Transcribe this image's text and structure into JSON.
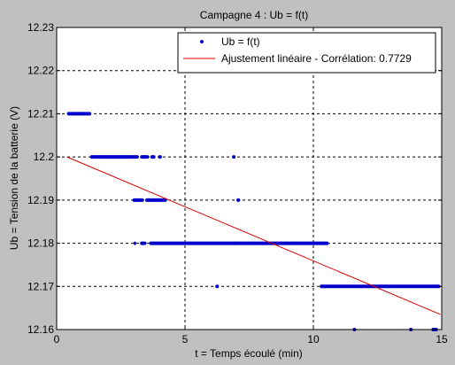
{
  "chart_data": {
    "type": "scatter",
    "title": "Campagne 4 : Ub = f(t)",
    "xlabel": "t = Temps écoulé (min)",
    "ylabel": "Ub = Tension de la batterie (V)",
    "xlim": [
      0,
      15
    ],
    "ylim": [
      12.16,
      12.23
    ],
    "xticks": [
      0,
      5,
      10,
      15
    ],
    "xtick_labels": [
      "0",
      "5",
      "10",
      "15"
    ],
    "yticks": [
      12.16,
      12.17,
      12.18,
      12.19,
      12.2,
      12.21,
      12.22,
      12.23
    ],
    "ytick_labels": [
      "12.16",
      "12.17",
      "12.18",
      "12.19",
      "12.2",
      "12.21",
      "12.22",
      "12.23"
    ],
    "grid": true,
    "legend_position": "top-right",
    "colors": {
      "scatter": "#0000cc",
      "fit": "#dd0000",
      "axes_bg": "#ffffff",
      "figure_bg": "#c0c0c0"
    },
    "series": [
      {
        "name": "Ub = f(t)",
        "kind": "scatter",
        "segments": [
          {
            "y": 12.21,
            "x_start": 0.4,
            "x_end": 1.35
          },
          {
            "y": 12.2,
            "x_start": 1.3,
            "x_end": 3.2
          },
          {
            "y": 12.2,
            "x_start": 3.25,
            "x_end": 3.6
          },
          {
            "y": 12.2,
            "x_start": 3.65,
            "x_end": 3.85
          },
          {
            "y": 12.2,
            "x_start": 3.95,
            "x_end": 4.1
          },
          {
            "y": 12.19,
            "x_start": 2.95,
            "x_end": 3.4
          },
          {
            "y": 12.19,
            "x_start": 3.45,
            "x_end": 4.3
          },
          {
            "y": 12.19,
            "x_start": 7.0,
            "x_end": 7.15
          },
          {
            "y": 12.18,
            "x_start": 3.0,
            "x_end": 3.1
          },
          {
            "y": 12.18,
            "x_start": 3.25,
            "x_end": 3.5
          },
          {
            "y": 12.18,
            "x_start": 3.6,
            "x_end": 10.6
          },
          {
            "y": 12.17,
            "x_start": 10.25,
            "x_end": 14.95
          },
          {
            "y": 12.16,
            "x_start": 14.6,
            "x_end": 14.85
          }
        ],
        "points": [
          {
            "x": 6.9,
            "y": 12.2
          },
          {
            "x": 6.25,
            "y": 12.17
          },
          {
            "x": 6.95,
            "y": 12.18
          },
          {
            "x": 11.6,
            "y": 12.16
          },
          {
            "x": 13.8,
            "y": 12.16
          }
        ]
      },
      {
        "name": "Ajustement linéaire - Corrélation: 0.7729",
        "kind": "line",
        "x": [
          0.4,
          14.95
        ],
        "y": [
          12.2,
          12.1635
        ]
      }
    ]
  }
}
